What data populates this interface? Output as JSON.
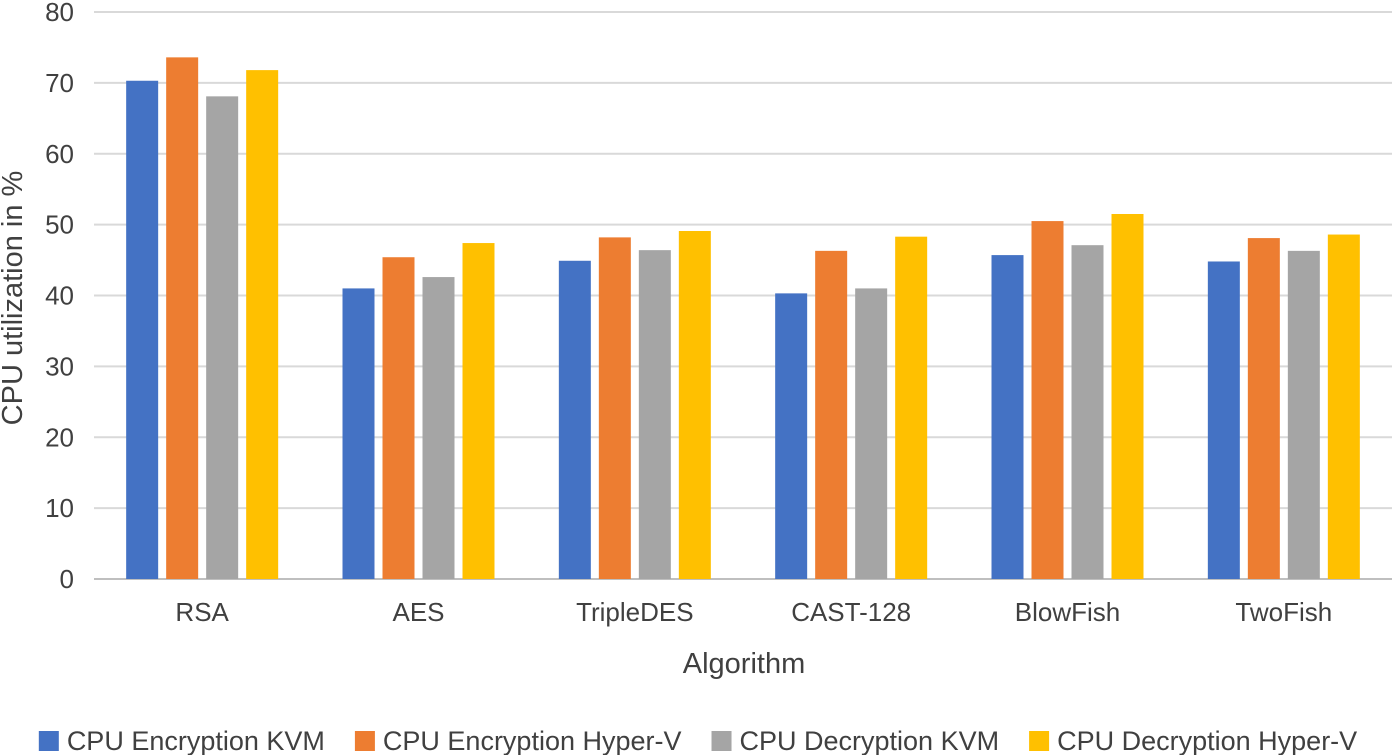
{
  "chart_data": {
    "type": "bar",
    "title": "",
    "xlabel": "Algorithm",
    "ylabel": "CPU utilization in %",
    "ylim": [
      0,
      80
    ],
    "yticks": [
      0,
      10,
      20,
      30,
      40,
      50,
      60,
      70,
      80
    ],
    "grid": true,
    "legend_position": "bottom",
    "categories": [
      "RSA",
      "AES",
      "TripleDES",
      "CAST-128",
      "BlowFish",
      "TwoFish"
    ],
    "series": [
      {
        "name": "CPU Encryption KVM",
        "color": "#4472C4",
        "values": [
          70.3,
          41.0,
          44.9,
          40.3,
          45.7,
          44.8
        ]
      },
      {
        "name": "CPU Encryption Hyper-V",
        "color": "#ED7D31",
        "values": [
          73.6,
          45.4,
          48.2,
          46.3,
          50.5,
          48.1
        ]
      },
      {
        "name": "CPU Decryption KVM",
        "color": "#A5A5A5",
        "values": [
          68.1,
          42.6,
          46.4,
          41.0,
          47.1,
          46.3
        ]
      },
      {
        "name": "CPU Decryption Hyper-V",
        "color": "#FFC000",
        "values": [
          71.8,
          47.4,
          49.1,
          48.3,
          51.5,
          48.6
        ]
      }
    ]
  }
}
